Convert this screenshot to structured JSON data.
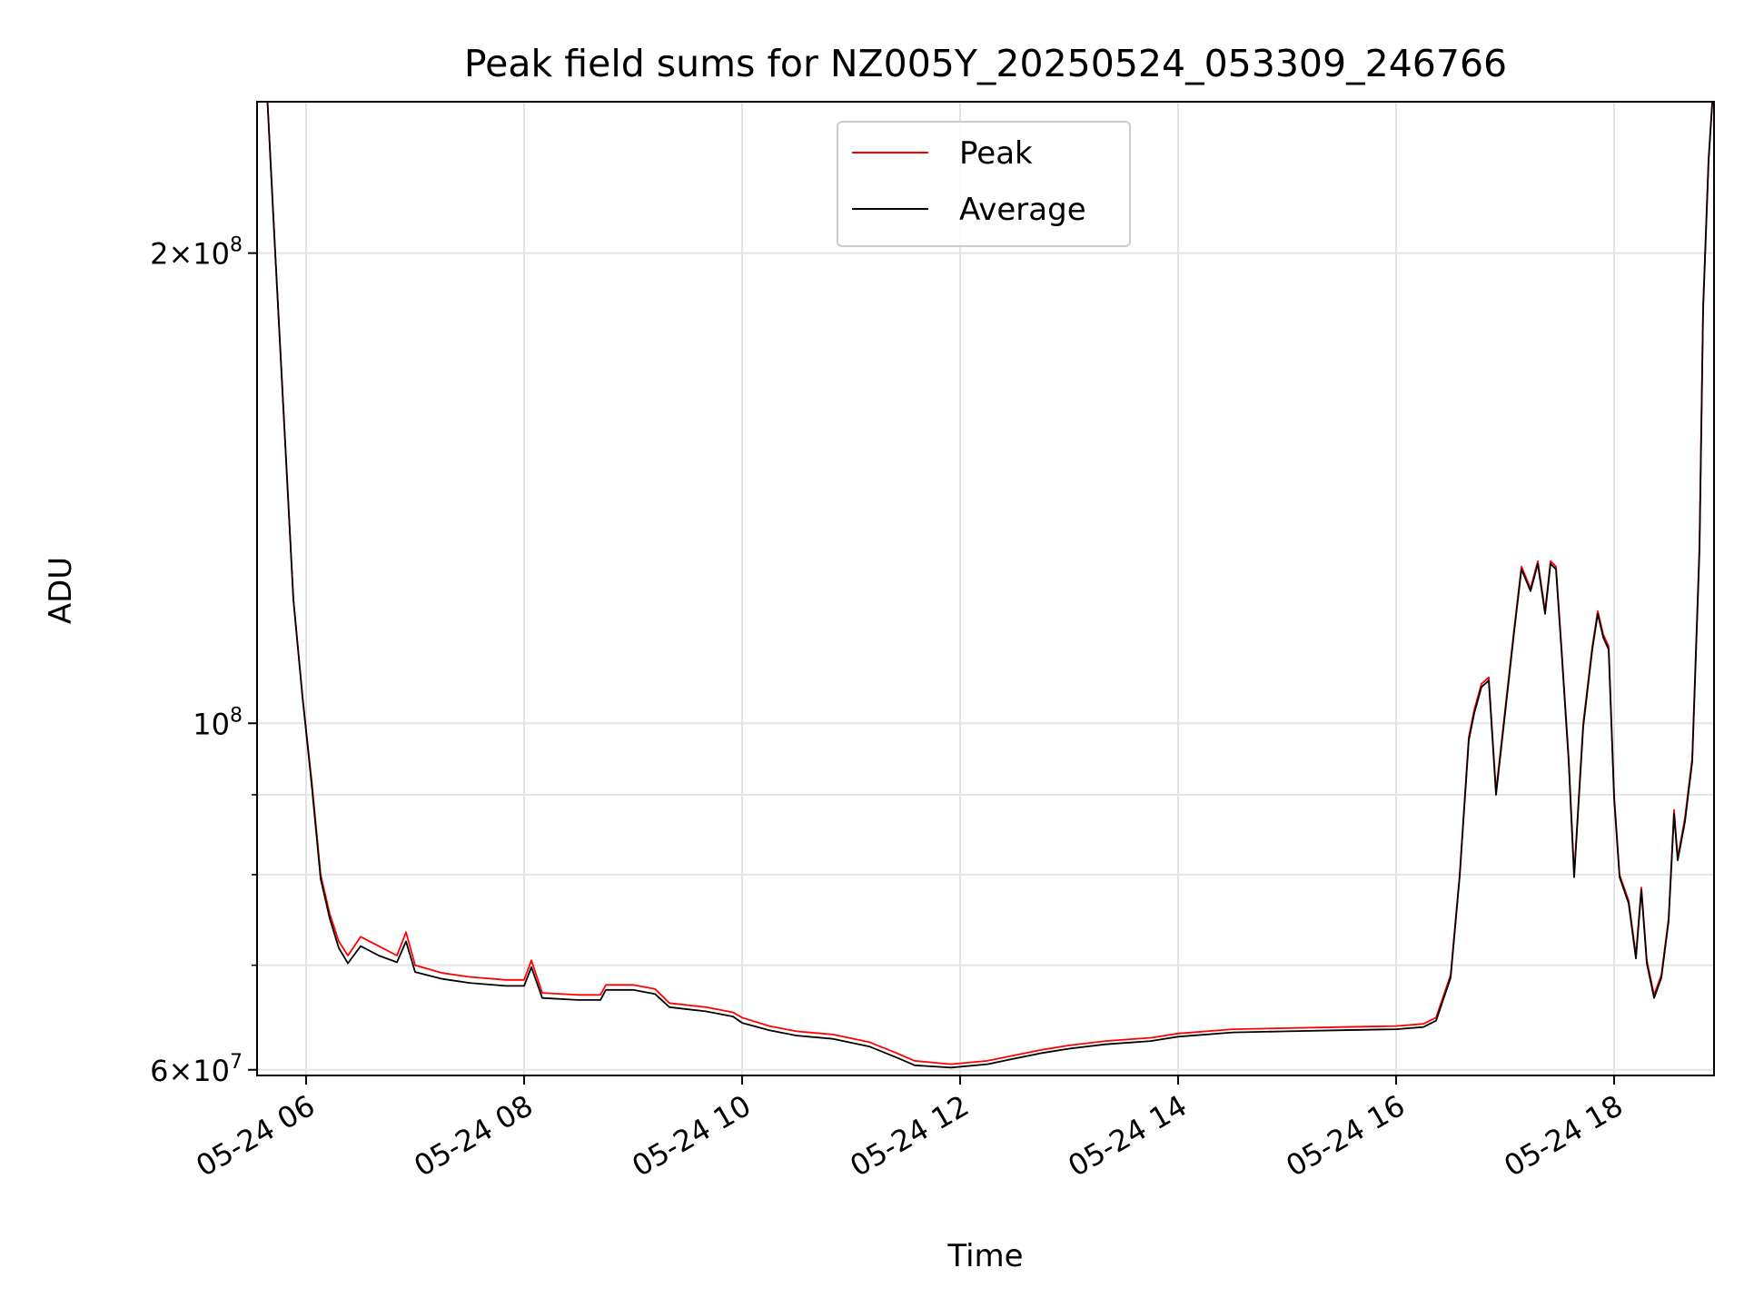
{
  "chart_data": {
    "type": "line",
    "title": "Peak field sums for NZ005Y_20250524_053309_246766",
    "xlabel": "Time",
    "ylabel": "ADU",
    "y_scale": "log",
    "xlim": [
      "2025-05-24 05:33",
      "2025-05-24 18:55"
    ],
    "ylim": [
      59500000,
      250000000
    ],
    "x_ticks": [
      "2025-05-24 06:00",
      "2025-05-24 08:00",
      "2025-05-24 10:00",
      "2025-05-24 12:00",
      "2025-05-24 14:00",
      "2025-05-24 16:00",
      "2025-05-24 18:00"
    ],
    "x_tick_labels": [
      "05-24 06",
      "05-24 08",
      "05-24 10",
      "05-24 12",
      "05-24 14",
      "05-24 16",
      "05-24 18"
    ],
    "y_major_ticks": [
      100000000,
      200000000,
      60000000
    ],
    "y_major_tick_labels": [
      {
        "mantissa": "",
        "exponent": "8"
      },
      {
        "mantissa": "2",
        "exponent": "8"
      },
      {
        "mantissa": "6",
        "exponent": "7"
      }
    ],
    "y_minor_ticks": [
      70000000,
      80000000,
      90000000
    ],
    "grid": true,
    "legend_position": "top-center",
    "series": [
      {
        "name": "Peak",
        "color": "#ff0000",
        "points": [
          [
            "2025-05-24 05:38",
            260000000
          ],
          [
            "2025-05-24 05:43",
            200000000
          ],
          [
            "2025-05-24 05:48",
            155000000
          ],
          [
            "2025-05-24 05:53",
            120000000
          ],
          [
            "2025-05-24 05:58",
            104000000
          ],
          [
            "2025-05-24 06:03",
            92000000
          ],
          [
            "2025-05-24 06:08",
            80000000
          ],
          [
            "2025-05-24 06:13",
            75500000
          ],
          [
            "2025-05-24 06:18",
            72500000
          ],
          [
            "2025-05-24 06:23",
            71000000
          ],
          [
            "2025-05-24 06:30",
            73000000
          ],
          [
            "2025-05-24 06:40",
            72000000
          ],
          [
            "2025-05-24 06:50",
            71000000
          ],
          [
            "2025-05-24 06:55",
            73500000
          ],
          [
            "2025-05-24 07:00",
            70000000
          ],
          [
            "2025-05-24 07:15",
            69200000
          ],
          [
            "2025-05-24 07:30",
            68800000
          ],
          [
            "2025-05-24 07:50",
            68500000
          ],
          [
            "2025-05-24 08:00",
            68500000
          ],
          [
            "2025-05-24 08:04",
            70500000
          ],
          [
            "2025-05-24 08:10",
            67200000
          ],
          [
            "2025-05-24 08:30",
            67000000
          ],
          [
            "2025-05-24 08:42",
            67000000
          ],
          [
            "2025-05-24 08:45",
            68000000
          ],
          [
            "2025-05-24 09:00",
            68000000
          ],
          [
            "2025-05-24 09:12",
            67600000
          ],
          [
            "2025-05-24 09:20",
            66200000
          ],
          [
            "2025-05-24 09:40",
            65800000
          ],
          [
            "2025-05-24 09:55",
            65300000
          ],
          [
            "2025-05-24 10:00",
            64800000
          ],
          [
            "2025-05-24 10:15",
            64000000
          ],
          [
            "2025-05-24 10:30",
            63500000
          ],
          [
            "2025-05-24 10:50",
            63200000
          ],
          [
            "2025-05-24 11:10",
            62500000
          ],
          [
            "2025-05-24 11:25",
            61500000
          ],
          [
            "2025-05-24 11:35",
            60800000
          ],
          [
            "2025-05-24 11:55",
            60500000
          ],
          [
            "2025-05-24 12:15",
            60800000
          ],
          [
            "2025-05-24 12:30",
            61300000
          ],
          [
            "2025-05-24 12:45",
            61800000
          ],
          [
            "2025-05-24 13:00",
            62200000
          ],
          [
            "2025-05-24 13:20",
            62600000
          ],
          [
            "2025-05-24 13:45",
            62900000
          ],
          [
            "2025-05-24 14:00",
            63300000
          ],
          [
            "2025-05-24 14:30",
            63700000
          ],
          [
            "2025-05-24 15:00",
            63800000
          ],
          [
            "2025-05-24 15:30",
            63900000
          ],
          [
            "2025-05-24 16:00",
            64000000
          ],
          [
            "2025-05-24 16:15",
            64200000
          ],
          [
            "2025-05-24 16:22",
            64800000
          ],
          [
            "2025-05-24 16:30",
            69000000
          ],
          [
            "2025-05-24 16:35",
            80000000
          ],
          [
            "2025-05-24 16:40",
            98000000
          ],
          [
            "2025-05-24 16:43",
            102000000
          ],
          [
            "2025-05-24 16:47",
            106000000
          ],
          [
            "2025-05-24 16:51",
            107000000
          ],
          [
            "2025-05-24 16:55",
            90500000
          ],
          [
            "2025-05-24 17:00",
            102000000
          ],
          [
            "2025-05-24 17:05",
            115000000
          ],
          [
            "2025-05-24 17:09",
            126000000
          ],
          [
            "2025-05-24 17:14",
            122000000
          ],
          [
            "2025-05-24 17:18",
            127000000
          ],
          [
            "2025-05-24 17:22",
            118000000
          ],
          [
            "2025-05-24 17:25",
            127000000
          ],
          [
            "2025-05-24 17:28",
            126000000
          ],
          [
            "2025-05-24 17:31",
            112000000
          ],
          [
            "2025-05-24 17:35",
            95000000
          ],
          [
            "2025-05-24 17:38",
            80000000
          ],
          [
            "2025-05-24 17:43",
            100000000
          ],
          [
            "2025-05-24 17:48",
            112000000
          ],
          [
            "2025-05-24 17:51",
            118000000
          ],
          [
            "2025-05-24 17:54",
            114000000
          ],
          [
            "2025-05-24 17:57",
            112000000
          ],
          [
            "2025-05-24 18:00",
            90000000
          ],
          [
            "2025-05-24 18:03",
            80000000
          ],
          [
            "2025-05-24 18:08",
            77000000
          ],
          [
            "2025-05-24 18:12",
            71000000
          ],
          [
            "2025-05-24 18:15",
            78500000
          ],
          [
            "2025-05-24 18:18",
            70500000
          ],
          [
            "2025-05-24 18:22",
            67000000
          ],
          [
            "2025-05-24 18:26",
            69000000
          ],
          [
            "2025-05-24 18:30",
            75000000
          ],
          [
            "2025-05-24 18:33",
            88000000
          ],
          [
            "2025-05-24 18:35",
            82000000
          ],
          [
            "2025-05-24 18:39",
            87000000
          ],
          [
            "2025-05-24 18:43",
            95000000
          ],
          [
            "2025-05-24 18:47",
            130000000
          ],
          [
            "2025-05-24 18:49",
            185000000
          ],
          [
            "2025-05-24 18:52",
            230000000
          ],
          [
            "2025-05-24 18:55",
            260000000
          ]
        ]
      },
      {
        "name": "Average",
        "color": "#000000",
        "points": [
          [
            "2025-05-24 05:38",
            260000000
          ],
          [
            "2025-05-24 05:43",
            200000000
          ],
          [
            "2025-05-24 05:48",
            155000000
          ],
          [
            "2025-05-24 05:53",
            120000000
          ],
          [
            "2025-05-24 05:58",
            104000000
          ],
          [
            "2025-05-24 06:03",
            91500000
          ],
          [
            "2025-05-24 06:08",
            79500000
          ],
          [
            "2025-05-24 06:13",
            75000000
          ],
          [
            "2025-05-24 06:18",
            71800000
          ],
          [
            "2025-05-24 06:23",
            70200000
          ],
          [
            "2025-05-24 06:30",
            72000000
          ],
          [
            "2025-05-24 06:40",
            71000000
          ],
          [
            "2025-05-24 06:50",
            70300000
          ],
          [
            "2025-05-24 06:55",
            72500000
          ],
          [
            "2025-05-24 07:00",
            69300000
          ],
          [
            "2025-05-24 07:15",
            68600000
          ],
          [
            "2025-05-24 07:30",
            68200000
          ],
          [
            "2025-05-24 07:50",
            67900000
          ],
          [
            "2025-05-24 08:00",
            67900000
          ],
          [
            "2025-05-24 08:04",
            69800000
          ],
          [
            "2025-05-24 08:10",
            66700000
          ],
          [
            "2025-05-24 08:30",
            66500000
          ],
          [
            "2025-05-24 08:42",
            66500000
          ],
          [
            "2025-05-24 08:45",
            67500000
          ],
          [
            "2025-05-24 09:00",
            67500000
          ],
          [
            "2025-05-24 09:12",
            67100000
          ],
          [
            "2025-05-24 09:20",
            65800000
          ],
          [
            "2025-05-24 09:40",
            65400000
          ],
          [
            "2025-05-24 09:55",
            64900000
          ],
          [
            "2025-05-24 10:00",
            64300000
          ],
          [
            "2025-05-24 10:15",
            63600000
          ],
          [
            "2025-05-24 10:30",
            63100000
          ],
          [
            "2025-05-24 10:50",
            62800000
          ],
          [
            "2025-05-24 11:10",
            62100000
          ],
          [
            "2025-05-24 11:25",
            61100000
          ],
          [
            "2025-05-24 11:35",
            60400000
          ],
          [
            "2025-05-24 11:55",
            60200000
          ],
          [
            "2025-05-24 12:15",
            60500000
          ],
          [
            "2025-05-24 12:30",
            61000000
          ],
          [
            "2025-05-24 12:45",
            61500000
          ],
          [
            "2025-05-24 13:00",
            61900000
          ],
          [
            "2025-05-24 13:20",
            62300000
          ],
          [
            "2025-05-24 13:45",
            62600000
          ],
          [
            "2025-05-24 14:00",
            63000000
          ],
          [
            "2025-05-24 14:30",
            63400000
          ],
          [
            "2025-05-24 15:00",
            63500000
          ],
          [
            "2025-05-24 15:30",
            63600000
          ],
          [
            "2025-05-24 16:00",
            63700000
          ],
          [
            "2025-05-24 16:15",
            63900000
          ],
          [
            "2025-05-24 16:22",
            64500000
          ],
          [
            "2025-05-24 16:30",
            68700000
          ],
          [
            "2025-05-24 16:35",
            79800000
          ],
          [
            "2025-05-24 16:40",
            97500000
          ],
          [
            "2025-05-24 16:43",
            101500000
          ],
          [
            "2025-05-24 16:47",
            105500000
          ],
          [
            "2025-05-24 16:51",
            106500000
          ],
          [
            "2025-05-24 16:55",
            90000000
          ],
          [
            "2025-05-24 17:00",
            101500000
          ],
          [
            "2025-05-24 17:05",
            114500000
          ],
          [
            "2025-05-24 17:09",
            125500000
          ],
          [
            "2025-05-24 17:14",
            121500000
          ],
          [
            "2025-05-24 17:18",
            126500000
          ],
          [
            "2025-05-24 17:22",
            117500000
          ],
          [
            "2025-05-24 17:25",
            126500000
          ],
          [
            "2025-05-24 17:28",
            125500000
          ],
          [
            "2025-05-24 17:31",
            111500000
          ],
          [
            "2025-05-24 17:35",
            94500000
          ],
          [
            "2025-05-24 17:38",
            79700000
          ],
          [
            "2025-05-24 17:43",
            99500000
          ],
          [
            "2025-05-24 17:48",
            111500000
          ],
          [
            "2025-05-24 17:51",
            117500000
          ],
          [
            "2025-05-24 17:54",
            113500000
          ],
          [
            "2025-05-24 17:57",
            111500000
          ],
          [
            "2025-05-24 18:00",
            89500000
          ],
          [
            "2025-05-24 18:03",
            79700000
          ],
          [
            "2025-05-24 18:08",
            76700000
          ],
          [
            "2025-05-24 18:12",
            70700000
          ],
          [
            "2025-05-24 18:15",
            78200000
          ],
          [
            "2025-05-24 18:18",
            70200000
          ],
          [
            "2025-05-24 18:22",
            66700000
          ],
          [
            "2025-05-24 18:26",
            68700000
          ],
          [
            "2025-05-24 18:30",
            74700000
          ],
          [
            "2025-05-24 18:33",
            87500000
          ],
          [
            "2025-05-24 18:35",
            81700000
          ],
          [
            "2025-05-24 18:39",
            86500000
          ],
          [
            "2025-05-24 18:43",
            94500000
          ],
          [
            "2025-05-24 18:47",
            129000000
          ],
          [
            "2025-05-24 18:49",
            184000000
          ],
          [
            "2025-05-24 18:52",
            229000000
          ],
          [
            "2025-05-24 18:55",
            260000000
          ]
        ]
      }
    ]
  }
}
